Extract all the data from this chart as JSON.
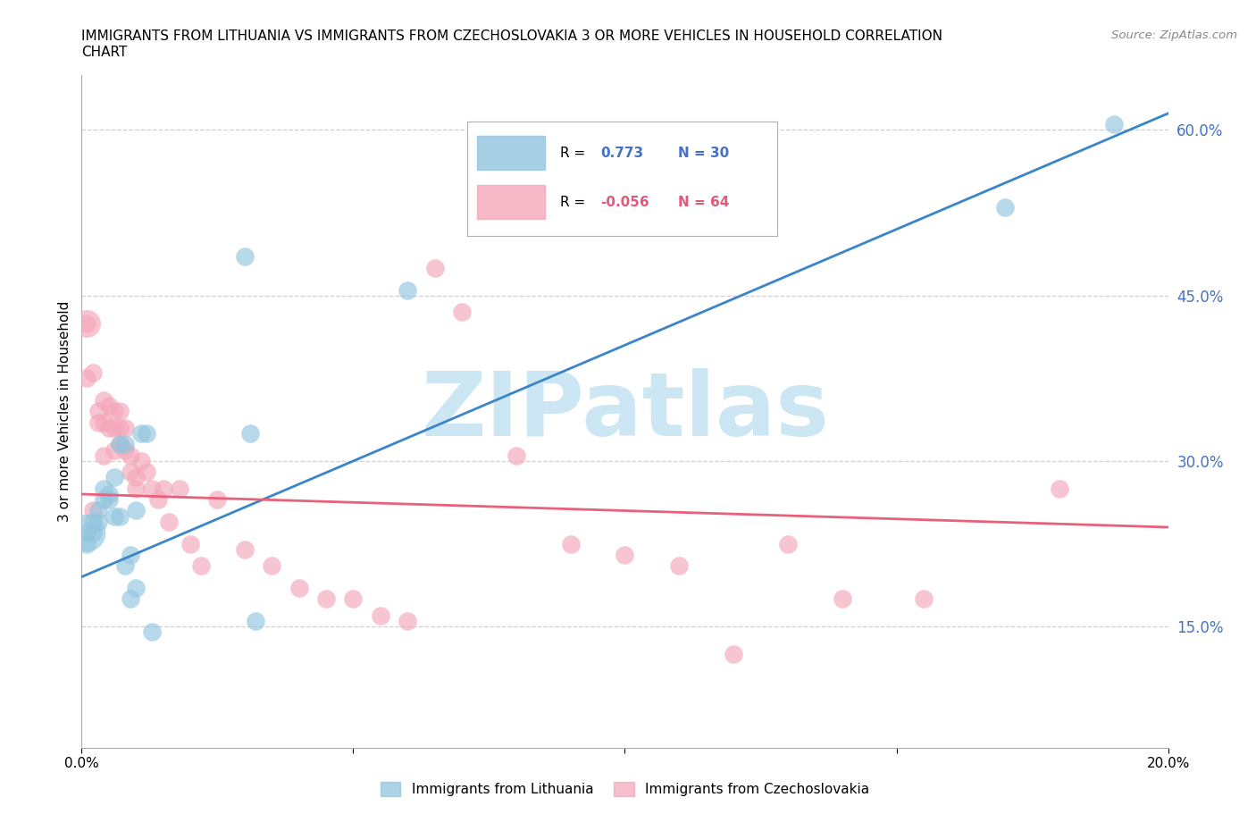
{
  "title": "IMMIGRANTS FROM LITHUANIA VS IMMIGRANTS FROM CZECHOSLOVAKIA 3 OR MORE VEHICLES IN HOUSEHOLD CORRELATION\nCHART",
  "source": "Source: ZipAtlas.com",
  "ylabel": "3 or more Vehicles in Household",
  "xlim": [
    0.0,
    0.2
  ],
  "ylim": [
    0.04,
    0.65
  ],
  "xticks": [
    0.0,
    0.05,
    0.1,
    0.15,
    0.2
  ],
  "xticklabels": [
    "0.0%",
    "",
    "",
    "",
    "20.0%"
  ],
  "yticks_right": [
    0.15,
    0.3,
    0.45,
    0.6
  ],
  "ytick_labels_right": [
    "15.0%",
    "30.0%",
    "45.0%",
    "60.0%"
  ],
  "blue_color": "#92c5de",
  "pink_color": "#f4a7b9",
  "blue_line_color": "#3a85c8",
  "pink_line_color": "#e8607a",
  "watermark_text": "ZIPatlas",
  "watermark_color": "#cce6f4",
  "grid_color": "#d0d0d0",
  "blue_scatter_x": [
    0.001,
    0.001,
    0.002,
    0.002,
    0.003,
    0.003,
    0.004,
    0.004,
    0.005,
    0.005,
    0.006,
    0.006,
    0.007,
    0.007,
    0.008,
    0.008,
    0.009,
    0.009,
    0.01,
    0.01,
    0.011,
    0.012,
    0.013,
    0.03,
    0.031,
    0.032,
    0.06,
    0.17,
    0.19
  ],
  "blue_scatter_y": [
    0.235,
    0.225,
    0.245,
    0.235,
    0.255,
    0.245,
    0.275,
    0.265,
    0.27,
    0.265,
    0.25,
    0.285,
    0.25,
    0.315,
    0.315,
    0.205,
    0.215,
    0.175,
    0.255,
    0.185,
    0.325,
    0.325,
    0.145,
    0.485,
    0.325,
    0.155,
    0.455,
    0.53,
    0.605
  ],
  "pink_scatter_x": [
    0.001,
    0.001,
    0.002,
    0.002,
    0.003,
    0.003,
    0.004,
    0.004,
    0.004,
    0.005,
    0.005,
    0.006,
    0.006,
    0.006,
    0.007,
    0.007,
    0.007,
    0.008,
    0.008,
    0.009,
    0.009,
    0.01,
    0.01,
    0.011,
    0.012,
    0.013,
    0.014,
    0.015,
    0.016,
    0.018,
    0.02,
    0.022,
    0.025,
    0.03,
    0.035,
    0.04,
    0.045,
    0.05,
    0.055,
    0.06,
    0.065,
    0.07,
    0.08,
    0.09,
    0.1,
    0.11,
    0.12,
    0.13,
    0.14,
    0.155,
    0.18
  ],
  "pink_scatter_y": [
    0.425,
    0.375,
    0.38,
    0.255,
    0.345,
    0.335,
    0.355,
    0.335,
    0.305,
    0.35,
    0.33,
    0.345,
    0.33,
    0.31,
    0.345,
    0.33,
    0.315,
    0.33,
    0.31,
    0.305,
    0.29,
    0.285,
    0.275,
    0.3,
    0.29,
    0.275,
    0.265,
    0.275,
    0.245,
    0.275,
    0.225,
    0.205,
    0.265,
    0.22,
    0.205,
    0.185,
    0.175,
    0.175,
    0.16,
    0.155,
    0.475,
    0.435,
    0.305,
    0.225,
    0.215,
    0.205,
    0.125,
    0.225,
    0.175,
    0.175,
    0.275
  ],
  "blue_line_x": [
    0.0,
    0.2
  ],
  "blue_line_y": [
    0.195,
    0.615
  ],
  "pink_line_x": [
    0.0,
    0.2
  ],
  "pink_line_y": [
    0.27,
    0.24
  ],
  "legend_label_blue": "Immigrants from Lithuania",
  "legend_label_pink": "Immigrants from Czechoslovakia",
  "legend_R_blue": "0.773",
  "legend_N_blue": "30",
  "legend_R_pink": "-0.056",
  "legend_N_pink": "64"
}
